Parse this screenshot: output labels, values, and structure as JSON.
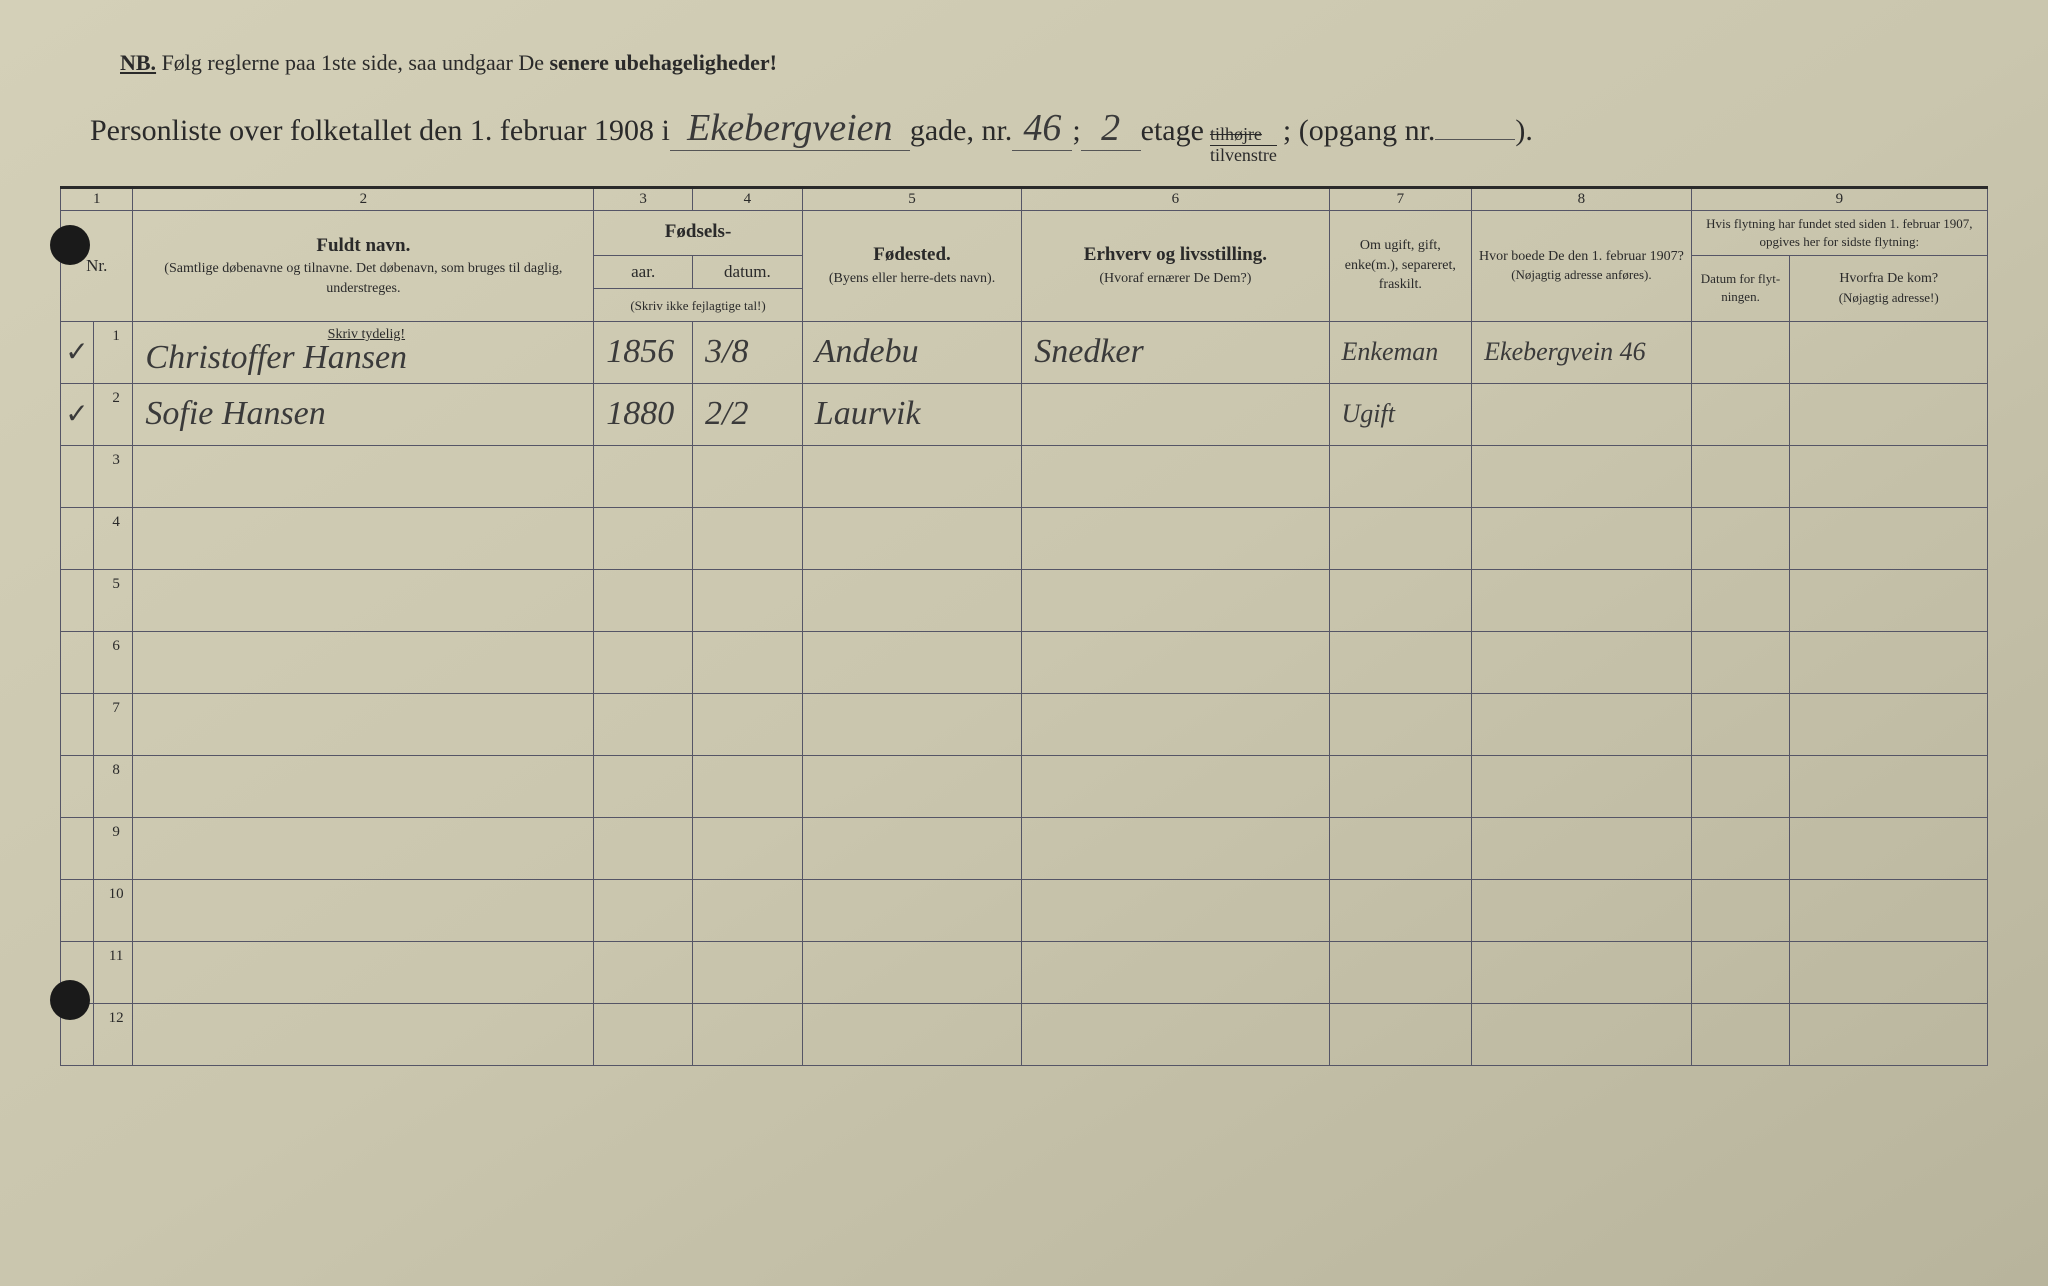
{
  "nb": {
    "prefix": "NB.",
    "text1": "Følg reglerne paa 1ste side, saa undgaar De ",
    "emphasis": "senere ubehageligheder!"
  },
  "title": {
    "prefix": "Personliste over folketallet den 1. februar 1908 i",
    "street": "Ekebergveien",
    "gade_label": "gade, nr.",
    "house_nr": "46",
    "semicolon": ";",
    "floor": "2",
    "etage_label": "etage",
    "side_top": "tilhøjre",
    "side_bot": "tilvenstre",
    "opgang_label": "; (opgang nr.",
    "opgang_nr": "",
    "closing": ")."
  },
  "columns": {
    "c1": "1",
    "c2": "2",
    "c3": "3",
    "c4": "4",
    "c5": "5",
    "c6": "6",
    "c7": "7",
    "c8": "8",
    "c9": "9"
  },
  "headers": {
    "nr": "Nr.",
    "name_main": "Fuldt navn.",
    "name_sub": "(Samtlige døbenavne og tilnavne. Det døbenavn, som bruges til daglig, understreges.",
    "fodsels": "Fødsels-",
    "aar": "aar.",
    "datum": "datum.",
    "skriv_ikke": "(Skriv ikke fejlagtige tal!)",
    "fodested": "Fødested.",
    "fodested_sub": "(Byens eller herre-dets navn).",
    "erhverv": "Erhverv og livsstilling.",
    "erhverv_sub": "(Hvoraf ernærer De Dem?)",
    "marital": "Om ugift, gift, enke(m.), separeret, fraskilt.",
    "prev_addr": "Hvor boede De den 1. februar 1907?",
    "prev_addr_sub": "(Nøjagtig adresse anføres).",
    "flytning": "Hvis flytning har fundet sted siden 1. februar 1907, opgives her for sidste flytning:",
    "datum_flyt": "Datum for flyt-ningen.",
    "hvorfra": "Hvorfra De kom?",
    "hvorfra_sub": "(Nøjagtig adresse!)",
    "skriv_tydelig": "Skriv tydelig!"
  },
  "rows": [
    {
      "check": "✓",
      "nr": "1",
      "name": "Christoffer Hansen",
      "year": "1856",
      "date": "3/8",
      "birthplace": "Andebu",
      "occupation": "Snedker",
      "marital": "Enkeman",
      "prev_addr": "Ekebergvein 46",
      "move_date": "",
      "from": ""
    },
    {
      "check": "✓",
      "nr": "2",
      "name": "Sofie Hansen",
      "year": "1880",
      "date": "2/2",
      "birthplace": "Laurvik",
      "occupation": "",
      "marital": "Ugift",
      "prev_addr": "",
      "move_date": "",
      "from": ""
    },
    {
      "check": "",
      "nr": "3",
      "name": "",
      "year": "",
      "date": "",
      "birthplace": "",
      "occupation": "",
      "marital": "",
      "prev_addr": "",
      "move_date": "",
      "from": ""
    },
    {
      "check": "",
      "nr": "4",
      "name": "",
      "year": "",
      "date": "",
      "birthplace": "",
      "occupation": "",
      "marital": "",
      "prev_addr": "",
      "move_date": "",
      "from": ""
    },
    {
      "check": "",
      "nr": "5",
      "name": "",
      "year": "",
      "date": "",
      "birthplace": "",
      "occupation": "",
      "marital": "",
      "prev_addr": "",
      "move_date": "",
      "from": ""
    },
    {
      "check": "",
      "nr": "6",
      "name": "",
      "year": "",
      "date": "",
      "birthplace": "",
      "occupation": "",
      "marital": "",
      "prev_addr": "",
      "move_date": "",
      "from": ""
    },
    {
      "check": "",
      "nr": "7",
      "name": "",
      "year": "",
      "date": "",
      "birthplace": "",
      "occupation": "",
      "marital": "",
      "prev_addr": "",
      "move_date": "",
      "from": ""
    },
    {
      "check": "",
      "nr": "8",
      "name": "",
      "year": "",
      "date": "",
      "birthplace": "",
      "occupation": "",
      "marital": "",
      "prev_addr": "",
      "move_date": "",
      "from": ""
    },
    {
      "check": "",
      "nr": "9",
      "name": "",
      "year": "",
      "date": "",
      "birthplace": "",
      "occupation": "",
      "marital": "",
      "prev_addr": "",
      "move_date": "",
      "from": ""
    },
    {
      "check": "",
      "nr": "10",
      "name": "",
      "year": "",
      "date": "",
      "birthplace": "",
      "occupation": "",
      "marital": "",
      "prev_addr": "",
      "move_date": "",
      "from": ""
    },
    {
      "check": "",
      "nr": "11",
      "name": "",
      "year": "",
      "date": "",
      "birthplace": "",
      "occupation": "",
      "marital": "",
      "prev_addr": "",
      "move_date": "",
      "from": ""
    },
    {
      "check": "",
      "nr": "12",
      "name": "",
      "year": "",
      "date": "",
      "birthplace": "",
      "occupation": "",
      "marital": "",
      "prev_addr": "",
      "move_date": "",
      "from": ""
    }
  ]
}
